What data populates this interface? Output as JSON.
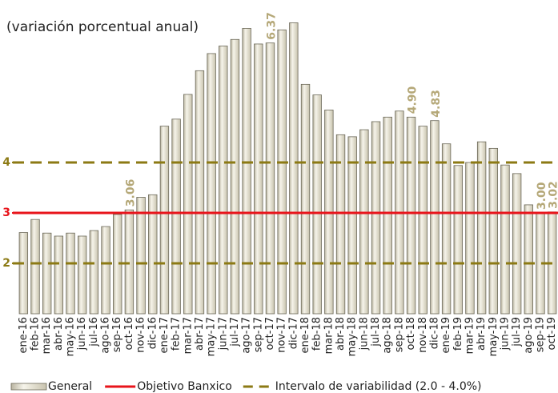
{
  "chart_data": {
    "type": "bar",
    "subtitle": "(variación porcentual anual)",
    "categories": [
      "ene-16",
      "feb-16",
      "mar-16",
      "abr-16",
      "may-16",
      "jun-16",
      "jul-16",
      "ago-16",
      "sep-16",
      "oct-16",
      "nov-16",
      "dic-16",
      "ene-17",
      "feb-17",
      "mar-17",
      "abr-17",
      "may-17",
      "jun-17",
      "jul-17",
      "ago-17",
      "sep-17",
      "oct-17",
      "nov-17",
      "dic-17",
      "ene-18",
      "feb-18",
      "mar-18",
      "abr-18",
      "may-18",
      "jun-18",
      "jul-18",
      "ago-18",
      "sep-18",
      "oct-18",
      "nov-18",
      "dic-18",
      "ene-19",
      "feb-19",
      "mar-19",
      "abr-19",
      "may-19",
      "jun-19",
      "jul-19",
      "ago-19",
      "sep-19",
      "oct-19"
    ],
    "series": [
      {
        "name": "General",
        "color": "#e8e4d4",
        "values": [
          2.61,
          2.87,
          2.6,
          2.54,
          2.6,
          2.54,
          2.65,
          2.73,
          2.97,
          3.06,
          3.31,
          3.36,
          4.72,
          4.86,
          5.35,
          5.82,
          6.16,
          6.31,
          6.44,
          6.66,
          6.35,
          6.37,
          6.63,
          6.77,
          5.55,
          5.34,
          5.04,
          4.55,
          4.51,
          4.65,
          4.81,
          4.9,
          5.02,
          4.9,
          4.72,
          4.83,
          4.37,
          3.94,
          4.0,
          4.41,
          4.28,
          3.95,
          3.78,
          3.16,
          3.0,
          3.02
        ],
        "value_labels": [
          null,
          null,
          null,
          null,
          null,
          null,
          null,
          null,
          null,
          "3.06",
          null,
          null,
          null,
          null,
          null,
          null,
          null,
          null,
          null,
          null,
          null,
          "6.37",
          null,
          null,
          null,
          null,
          null,
          null,
          null,
          null,
          null,
          null,
          null,
          "4.90",
          null,
          "4.83",
          null,
          null,
          null,
          null,
          null,
          null,
          null,
          null,
          "3.00",
          "3.02"
        ]
      }
    ],
    "reference_lines": [
      {
        "name": "Objetivo Banxico",
        "color": "#e8141b",
        "values": [
          3
        ],
        "dashed": false
      },
      {
        "name": "Intervalo de variabilidad (2.0 - 4.0%)",
        "color": "#8c7a14",
        "values": [
          2,
          4
        ],
        "dashed": true
      }
    ],
    "ylim": [
      1,
      7
    ],
    "yticks": [
      2,
      3,
      4
    ],
    "label_color": "#b5a878"
  }
}
